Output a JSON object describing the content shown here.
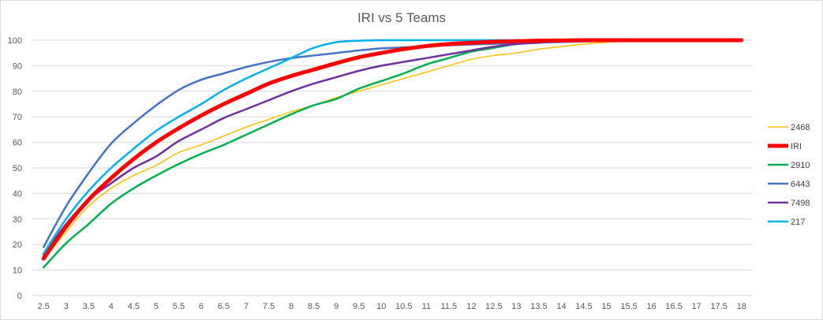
{
  "chart_data": {
    "type": "line",
    "title": "IRI vs 5 Teams",
    "xlabel": "",
    "ylabel": "",
    "ylim": [
      0,
      100
    ],
    "yticks": [
      0,
      10,
      20,
      30,
      40,
      50,
      60,
      70,
      80,
      90,
      100
    ],
    "x": [
      "2.5",
      "3",
      "3.5",
      "4",
      "4.5",
      "5",
      "5.5",
      "6",
      "6.5",
      "7",
      "7.5",
      "8",
      "8.5",
      "9",
      "9.5",
      "10",
      "10.5",
      "11",
      "11.5",
      "12",
      "12.5",
      "13",
      "13.5",
      "14",
      "14.5",
      "15",
      "15.5",
      "16",
      "16.5",
      "17",
      "17.5",
      "18"
    ],
    "grid": true,
    "legend_position": "right",
    "series": [
      {
        "name": "2468",
        "color": "#FFC000",
        "width": 1.5,
        "values": [
          14,
          25,
          35,
          42,
          47,
          51,
          56,
          59,
          62.5,
          66,
          69,
          72,
          74.5,
          77.5,
          80,
          82.5,
          85,
          87.5,
          90,
          92.5,
          94,
          95,
          96.5,
          97.5,
          98.5,
          99.2,
          99.6,
          99.8,
          99.9,
          100,
          100,
          100
        ]
      },
      {
        "name": "IRI",
        "color": "#FF0000",
        "width": 5,
        "values": [
          14.5,
          27,
          37.5,
          46,
          53.5,
          60,
          65.5,
          70.5,
          75,
          79,
          83,
          86,
          88.5,
          91,
          93.3,
          95,
          96.5,
          97.7,
          98.5,
          99,
          99.4,
          99.6,
          99.8,
          99.9,
          100,
          100,
          100,
          100,
          100,
          100,
          100,
          100
        ]
      },
      {
        "name": "2910",
        "color": "#00B050",
        "width": 2.5,
        "values": [
          11,
          20.5,
          28,
          36,
          42,
          47,
          51.5,
          55.5,
          59,
          63,
          67,
          71,
          74.5,
          77,
          81,
          84,
          87,
          90.5,
          93,
          95.5,
          97,
          98.5,
          99.2,
          99.6,
          99.8,
          100,
          100,
          100,
          100,
          100,
          100,
          100
        ]
      },
      {
        "name": "6443",
        "color": "#4472C4",
        "width": 2.5,
        "values": [
          19,
          35,
          48,
          59.5,
          67.5,
          74.5,
          80.5,
          84.5,
          87,
          89.5,
          91.5,
          93,
          94,
          95,
          96,
          96.8,
          97.2,
          97.6,
          98,
          98.3,
          98.6,
          98.9,
          99.1,
          99.3,
          99.5,
          99.7,
          99.8,
          99.9,
          100,
          100,
          100,
          100
        ]
      },
      {
        "name": "7498",
        "color": "#7030A0",
        "width": 2.5,
        "values": [
          16,
          28,
          37.5,
          44,
          50,
          54.5,
          60.5,
          65,
          69.5,
          73,
          76.5,
          80,
          83,
          85.5,
          88,
          90,
          91.5,
          93,
          94.5,
          96,
          97.5,
          98.5,
          99,
          99.5,
          99.7,
          99.9,
          100,
          100,
          100,
          100,
          100,
          100
        ]
      },
      {
        "name": "217",
        "color": "#00B0F0",
        "width": 2.5,
        "values": [
          16.5,
          30,
          41,
          50,
          57.5,
          64.5,
          70,
          75,
          80.5,
          85,
          89,
          93,
          97,
          99.2,
          99.8,
          100,
          100,
          100,
          100,
          100,
          100,
          100,
          100,
          100,
          100,
          100,
          100,
          100,
          100,
          100,
          100,
          100
        ]
      }
    ]
  }
}
